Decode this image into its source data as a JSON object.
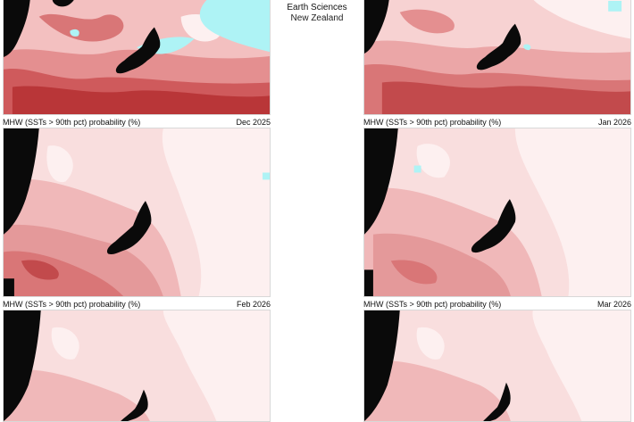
{
  "brand": {
    "line1": "Earth Sciences",
    "line2": "New Zealand"
  },
  "colors": {
    "land": "#0a0a0a",
    "low": "#fdf0f0",
    "mid_light": "#f6cccc",
    "mid": "#ecaaab",
    "high": "#d97677",
    "very_high": "#b83a3c",
    "cool": "#aef3f5"
  },
  "panels": [
    {
      "caption": "MHW (SSTs > 90th pct) probability (%)",
      "date": "Dec 2025",
      "intensity": "very_high"
    },
    {
      "caption": "MHW (SSTs > 90th pct) probability (%)",
      "date": "Jan 2026",
      "intensity": "high"
    },
    {
      "caption": "MHW (SSTs > 90th pct) probability (%)",
      "date": "Feb 2026",
      "intensity": "mid"
    },
    {
      "caption": "MHW (SSTs > 90th pct) probability (%)",
      "date": "Mar 2026",
      "intensity": "mid"
    },
    {
      "caption": "",
      "date": "",
      "intensity": "mid_light"
    },
    {
      "caption": "",
      "date": "",
      "intensity": "mid_light"
    }
  ]
}
